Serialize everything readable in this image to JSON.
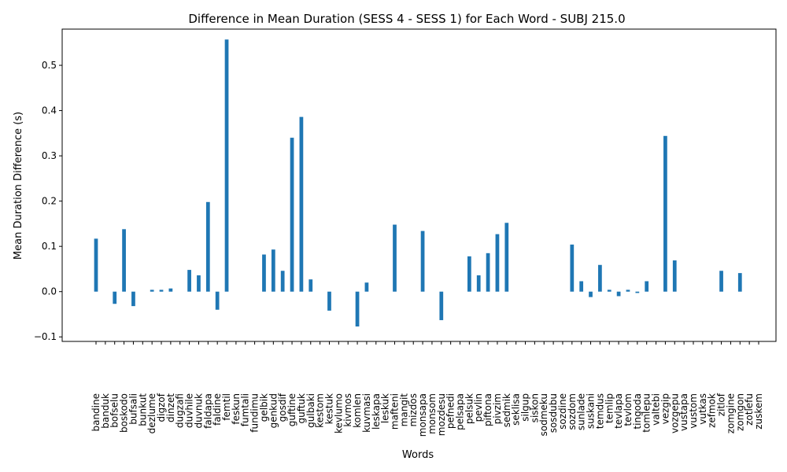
{
  "chart_data": {
    "type": "bar",
    "title": "Difference in Mean Duration (SESS 4 - SESS 1) for Each Word - SUBJ 215.0",
    "xlabel": "Words",
    "ylabel": "Mean Duration Difference (s)",
    "ylim": [
      -0.11,
      0.58
    ],
    "yticks": [
      -0.1,
      0.0,
      0.1,
      0.2,
      0.3,
      0.4,
      0.5
    ],
    "ytick_labels": [
      "−0.1",
      "0.0",
      "0.1",
      "0.2",
      "0.3",
      "0.4",
      "0.5"
    ],
    "bar_color": "#1f77b4",
    "grid": false,
    "categories": [
      "bandine",
      "banduk",
      "bofselu",
      "boskodo",
      "bufsali",
      "bunkut",
      "dezlume",
      "digzof",
      "dinzet",
      "dugzafi",
      "duvhile",
      "duvnuk",
      "faldapa",
      "faldine",
      "femtil",
      "feskun",
      "fumtali",
      "fundimu",
      "gelbik",
      "genkud",
      "gosdif",
      "guftine",
      "guftuk",
      "gulbaki",
      "kestom",
      "kestuk",
      "kevlumo",
      "kivmos",
      "komlen",
      "kuvmasi",
      "leskapa",
      "leskuk",
      "mafteni",
      "mangit",
      "mizdos",
      "monsapa",
      "monsom",
      "mozdesu",
      "pefnedi",
      "pelsapa",
      "pelsuk",
      "pevlin",
      "piftona",
      "pivzim",
      "sedmik",
      "seklisa",
      "silgup",
      "siskon",
      "sodmeku",
      "sosdubu",
      "sozdine",
      "sozdom",
      "sunlade",
      "suskani",
      "temdus",
      "temlip",
      "tevlapa",
      "tevlom",
      "tingoda",
      "tomlepu",
      "valtebi",
      "vezgip",
      "vozgepu",
      "vustapa",
      "vustom",
      "vutkas",
      "zefmok",
      "zitlof",
      "zomgine",
      "zomgon",
      "zotlefu",
      "zuskem"
    ],
    "values": [
      0.117,
      0,
      -0.027,
      0.138,
      -0.032,
      0,
      0.004,
      0.004,
      0.007,
      0,
      0.048,
      0.036,
      0.198,
      -0.04,
      0.557,
      0,
      0,
      0,
      0.082,
      0.093,
      0.046,
      0.34,
      0.386,
      0.027,
      0,
      -0.042,
      0,
      0,
      -0.077,
      0.02,
      0,
      0,
      0.148,
      0,
      0,
      0.134,
      0,
      -0.063,
      0,
      0,
      0.078,
      0.036,
      0.085,
      0.127,
      0.152,
      0,
      0,
      0,
      0,
      0,
      0,
      0.104,
      0.023,
      -0.012,
      0.059,
      0.004,
      -0.01,
      0.004,
      -0.003,
      0.023,
      0,
      0.344,
      0.069,
      0,
      0,
      0,
      0,
      0.046,
      0,
      0.041,
      0,
      0
    ]
  }
}
